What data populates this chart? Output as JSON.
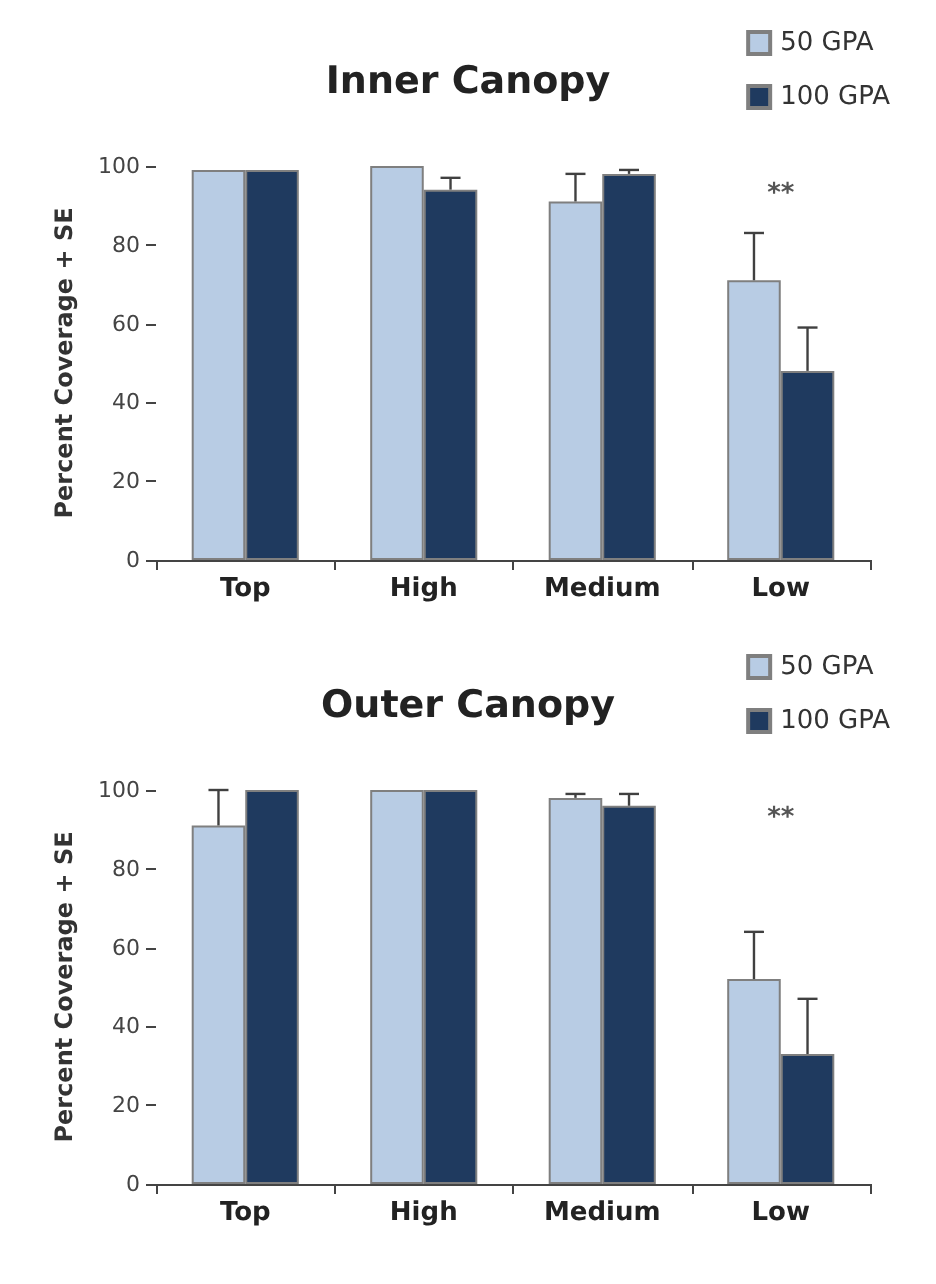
{
  "chart_data": [
    {
      "type": "bar",
      "title": "Inner Canopy",
      "ylabel": "Percent Coverage + SE",
      "categories": [
        "Top",
        "High",
        "Medium",
        "Low"
      ],
      "ylim": [
        0,
        100
      ],
      "yticks": [
        0,
        20,
        40,
        60,
        80,
        100
      ],
      "grid": false,
      "legend": "top right",
      "series": [
        {
          "name": "50 GPA",
          "color": "#b8cce4",
          "values": [
            99,
            100,
            91,
            71
          ],
          "errors": [
            null,
            null,
            [
              91,
              98
            ],
            [
              71,
              83
            ]
          ]
        },
        {
          "name": "100 GPA",
          "color": "#1f3a5f",
          "values": [
            99,
            94,
            98,
            48
          ],
          "errors": [
            null,
            [
              94,
              97
            ],
            [
              98,
              99
            ],
            [
              48,
              59
            ]
          ]
        }
      ],
      "annotations": [
        "**"
      ]
    },
    {
      "type": "bar",
      "title": "Outer Canopy",
      "ylabel": "Percent Coverage + SE",
      "categories": [
        "Top",
        "High",
        "Medium",
        "Low"
      ],
      "ylim": [
        0,
        100
      ],
      "yticks": [
        0,
        20,
        40,
        60,
        80,
        100
      ],
      "grid": false,
      "legend": "top right",
      "series": [
        {
          "name": "50 GPA",
          "color": "#b8cce4",
          "values": [
            91,
            100,
            98,
            52
          ],
          "errors": [
            [
              91,
              100
            ],
            null,
            [
              98,
              99
            ],
            [
              52,
              64
            ]
          ]
        },
        {
          "name": "100 GPA",
          "color": "#1f3a5f",
          "values": [
            100,
            100,
            96,
            33
          ],
          "errors": [
            null,
            null,
            [
              96,
              99
            ],
            [
              33,
              47
            ]
          ]
        }
      ],
      "annotations": [
        "**"
      ]
    }
  ]
}
